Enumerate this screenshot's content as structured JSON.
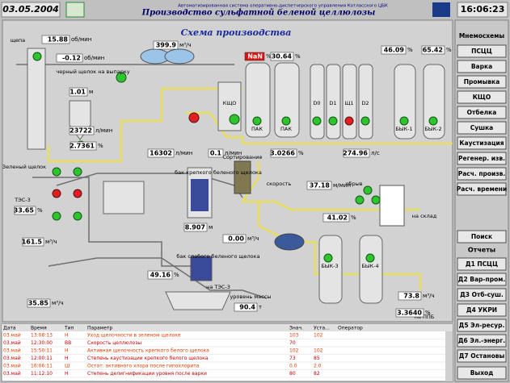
{
  "header": {
    "date": "03.05.2004",
    "system": "Автоматизированная система оперативно-диспетчерского управления Котласского ЦБК",
    "title": "Производство сульфатной беленой целлюлозы",
    "time": "16:06:23"
  },
  "diagram": {
    "title": "Схема производства",
    "labels": [
      "щепа",
      "черный щелок на выпарку",
      "КЩО",
      "ПАК",
      "ПАК",
      "D0",
      "D1",
      "Щ1",
      "D2",
      "БЫК-1",
      "БЫК-2",
      "Зеленый щелок",
      "ТЭС-3",
      "бак крепкого беленого щелока",
      "Сортирование",
      "скорость",
      "обрыв",
      "на склад",
      "бак слабого беленого щелока",
      "на ТЭС-3",
      "уровень массы",
      "БЫК-3",
      "БЫК-4",
      "на ППБ"
    ],
    "readings": [
      {
        "value": "15.88",
        "unit": "об/мин"
      },
      {
        "value": "-0.12",
        "unit": "об/мин"
      },
      {
        "value": "399.9",
        "unit": "м³/ч"
      },
      {
        "value": "NaN",
        "unit": "%"
      },
      {
        "value": "30.64",
        "unit": "%"
      },
      {
        "value": "46.09",
        "unit": "%"
      },
      {
        "value": "65.42",
        "unit": "%"
      },
      {
        "value": "1.01",
        "unit": "м"
      },
      {
        "value": "23722",
        "unit": "л/мин"
      },
      {
        "value": "2.7361",
        "unit": "%"
      },
      {
        "value": "16302",
        "unit": "л/мин"
      },
      {
        "value": "0.1",
        "unit": "л/мин"
      },
      {
        "value": "3.0266",
        "unit": "%"
      },
      {
        "value": "274.96",
        "unit": "л/с"
      },
      {
        "value": "33.65",
        "unit": "%"
      },
      {
        "value": "161.5",
        "unit": "м³/ч"
      },
      {
        "value": "8.907",
        "unit": "м"
      },
      {
        "value": "0.00",
        "unit": "м³/ч"
      },
      {
        "value": "37.18",
        "unit": "м/мин"
      },
      {
        "value": "41.02",
        "unit": "%"
      },
      {
        "value": "49.16",
        "unit": "%"
      },
      {
        "value": "35.85",
        "unit": "м³/ч"
      },
      {
        "value": "90.4",
        "unit": "т"
      },
      {
        "value": "73.8",
        "unit": "м³/ч"
      },
      {
        "value": "3.3640",
        "unit": "%"
      }
    ]
  },
  "menu": {
    "title": "Мнемосхемы",
    "buttons": [
      "ПСЦЦ",
      "Варка",
      "Промывка",
      "КЩО",
      "Отбелка",
      "Сушка",
      "Каустизация",
      "Регенер. изв.",
      "Расч. произв.",
      "Расч. времени"
    ],
    "search": "Поиск",
    "reports_title": "Отчеты",
    "reports": [
      "Д1 ПСЦЦ",
      "Д2 Вар-пром.",
      "Д3 Отб-суш.",
      "Д4 УКРИ",
      "Д5 Эл-ресур.",
      "Д6 Эл.-энерг.",
      "Д7 Остановы"
    ],
    "exit": "Выход"
  },
  "alarms": {
    "columns": [
      "Дата",
      "Время",
      "Тип",
      "Параметр",
      "Знач.",
      "Уста...",
      "Оператор"
    ],
    "rows": [
      [
        "03.май",
        "13:08:13",
        "Н",
        "Уход щелочности в зеленом щелоке",
        "103",
        "102"
      ],
      [
        "03.май",
        "12:30:00",
        "ВВ",
        "Скорость целлюлозы",
        "70",
        ""
      ],
      [
        "03.май",
        "15:50:11",
        "Н",
        "Активная щелочность крепкого белого щелока",
        "102",
        "102"
      ],
      [
        "03.май",
        "12:00:11",
        "Н",
        "Степень каустизации крепкого белого щелока",
        "73",
        "85"
      ],
      [
        "03.май",
        "16:06:11",
        "Ш",
        "Остат. активного хлора после гипохлорита",
        "0.0",
        "2.0"
      ],
      [
        "03.май",
        "11:12:10",
        "Н",
        "Степень делигнификации уровня после варки",
        "80",
        "82"
      ]
    ]
  }
}
